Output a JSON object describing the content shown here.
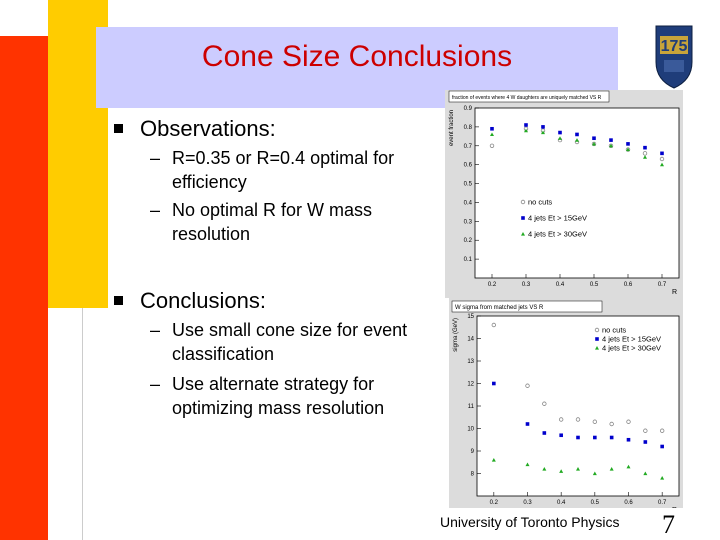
{
  "slide": {
    "title": "Cone Size Conclusions",
    "observations": {
      "heading": "Observations:",
      "items": [
        "R=0.35 or R=0.4 optimal for efficiency",
        "No optimal R for W mass resolution"
      ]
    },
    "conclusions": {
      "heading": "Conclusions:",
      "items": [
        "Use small cone size for event classification",
        "Use alternate strategy for optimizing mass resolution"
      ]
    },
    "footer": "University of Toronto Physics",
    "page_number": "7",
    "logo_text": "175",
    "dash": "–"
  },
  "chart_data": [
    {
      "type": "scatter",
      "title": "fraction of events where 4 W daughters are uniquely matched VS R",
      "xlabel": "R",
      "ylabel": "event fraction",
      "xlim": [
        0.15,
        0.75
      ],
      "ylim": [
        0,
        0.9
      ],
      "xticks": [
        "0.2",
        "0.3",
        "0.4",
        "0.5",
        "0.6",
        "0.7"
      ],
      "yticks": [
        "0.1",
        "0.2",
        "0.3",
        "0.4",
        "0.5",
        "0.6",
        "0.7",
        "0.8",
        "0.9"
      ],
      "legend_position": "bottom-left",
      "series": [
        {
          "name": "no cuts",
          "color": "#888888",
          "marker": "circle-open",
          "x": [
            0.2,
            0.3,
            0.35,
            0.4,
            0.45,
            0.5,
            0.55,
            0.6,
            0.65,
            0.7
          ],
          "y": [
            0.7,
            0.79,
            0.78,
            0.73,
            0.72,
            0.71,
            0.7,
            0.68,
            0.66,
            0.63
          ]
        },
        {
          "name": "4 jets Et > 15GeV",
          "color": "#0000cc",
          "marker": "square",
          "x": [
            0.2,
            0.3,
            0.35,
            0.4,
            0.45,
            0.5,
            0.55,
            0.6,
            0.65,
            0.7
          ],
          "y": [
            0.79,
            0.81,
            0.8,
            0.77,
            0.76,
            0.74,
            0.73,
            0.71,
            0.69,
            0.66
          ]
        },
        {
          "name": "4 jets Et > 30GeV",
          "color": "#22aa22",
          "marker": "triangle",
          "x": [
            0.2,
            0.3,
            0.35,
            0.4,
            0.45,
            0.5,
            0.55,
            0.6,
            0.65,
            0.7
          ],
          "y": [
            0.76,
            0.78,
            0.77,
            0.74,
            0.73,
            0.71,
            0.7,
            0.68,
            0.64,
            0.6
          ]
        }
      ]
    },
    {
      "type": "scatter",
      "title": "W sigma from matched jets VS R",
      "xlabel": "R",
      "ylabel": "sigma (GeV)",
      "xlim": [
        0.15,
        0.75
      ],
      "ylim": [
        7,
        15
      ],
      "xticks": [
        "0.2",
        "0.3",
        "0.4",
        "0.5",
        "0.6",
        "0.7"
      ],
      "yticks": [
        "8",
        "9",
        "10",
        "11",
        "12",
        "13",
        "14",
        "15"
      ],
      "legend_position": "top-right",
      "series": [
        {
          "name": "no cuts",
          "color": "#888888",
          "marker": "circle-open",
          "x": [
            0.2,
            0.3,
            0.35,
            0.4,
            0.45,
            0.5,
            0.55,
            0.6,
            0.65,
            0.7
          ],
          "y": [
            14.6,
            11.9,
            11.1,
            10.4,
            10.4,
            10.3,
            10.2,
            10.3,
            9.9,
            9.9
          ]
        },
        {
          "name": "4 jets Et > 15GeV",
          "color": "#0000cc",
          "marker": "square",
          "x": [
            0.2,
            0.3,
            0.35,
            0.4,
            0.45,
            0.5,
            0.55,
            0.6,
            0.65,
            0.7
          ],
          "y": [
            12.0,
            10.2,
            9.8,
            9.7,
            9.6,
            9.6,
            9.6,
            9.5,
            9.4,
            9.2
          ]
        },
        {
          "name": "4 jets Et > 30GeV",
          "color": "#22aa22",
          "marker": "triangle",
          "x": [
            0.2,
            0.3,
            0.35,
            0.4,
            0.45,
            0.5,
            0.55,
            0.6,
            0.65,
            0.7
          ],
          "y": [
            8.6,
            8.4,
            8.2,
            8.1,
            8.2,
            8.0,
            8.2,
            8.3,
            8.0,
            7.8
          ]
        }
      ]
    }
  ]
}
